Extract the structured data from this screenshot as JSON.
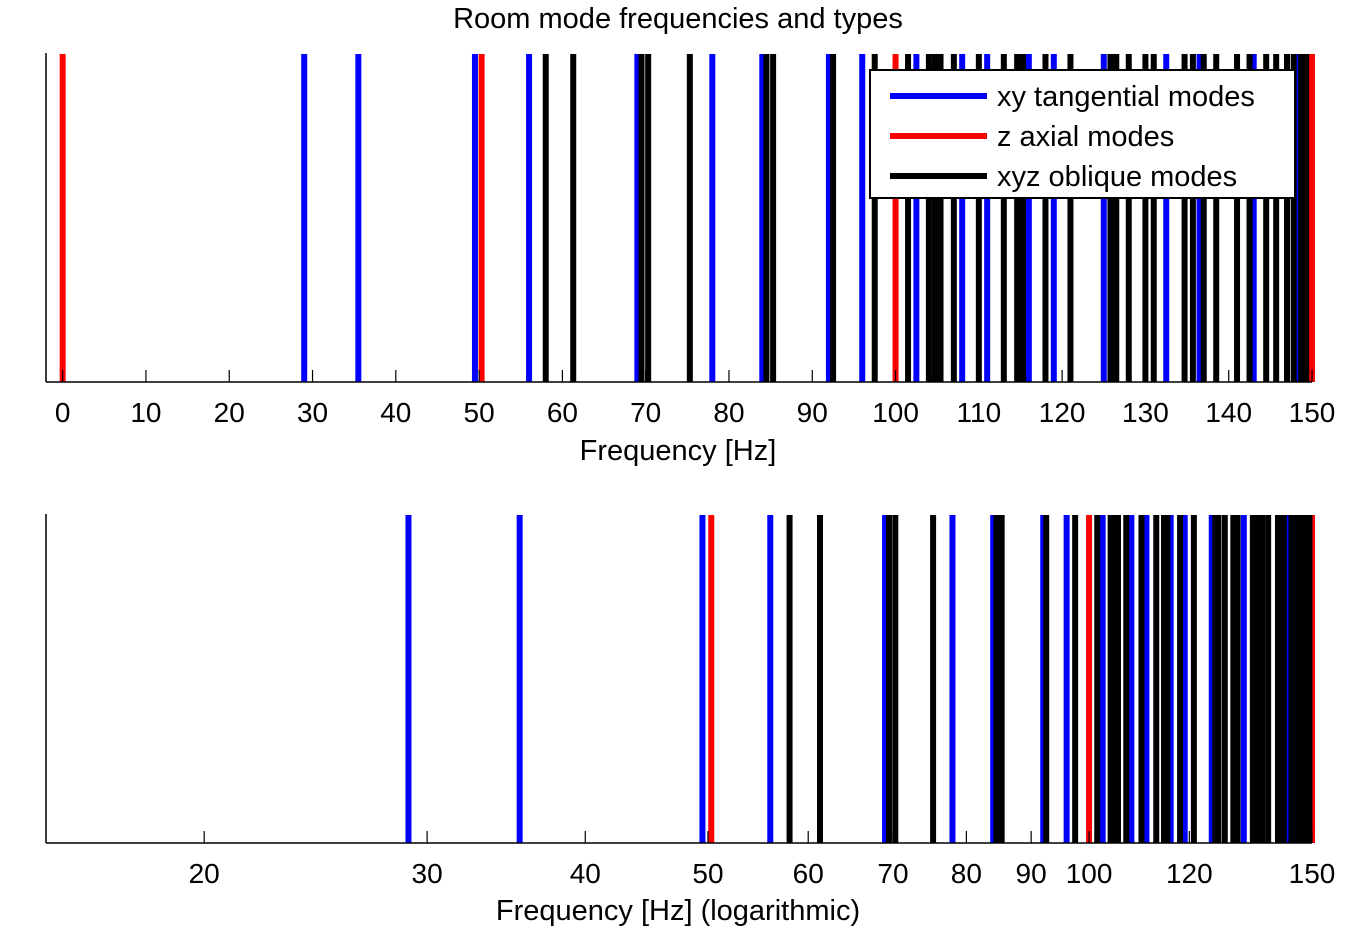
{
  "title": "Room mode frequencies and types",
  "colors": {
    "xy tangential modes": "#0000ff",
    "z axial modes": "#ff0000",
    "xyz oblique modes": "#000000"
  },
  "legend": {
    "placement": "top-right",
    "entries": [
      "xy tangential modes",
      "z axial modes",
      "xyz oblique modes"
    ]
  },
  "chart_data": [
    {
      "type": "bar",
      "style": "vertical mode lines",
      "xlabel": "Frequency [Hz]",
      "ylabel": "",
      "xscale": "linear",
      "xlim": [
        -2,
        150
      ],
      "xticks": [
        0,
        10,
        20,
        30,
        40,
        50,
        60,
        70,
        80,
        90,
        100,
        110,
        120,
        130,
        140,
        150
      ],
      "grid": false,
      "legend": "top-right",
      "series": [
        {
          "name": "xy tangential modes",
          "values": [
            29,
            35.5,
            49.5,
            56,
            69,
            78,
            84,
            92,
            96,
            102.5,
            108,
            111,
            116,
            119,
            125,
            132.5,
            136.5,
            143,
            148.5
          ]
        },
        {
          "name": "z axial modes",
          "values": [
            0,
            50.3,
            100,
            150
          ]
        },
        {
          "name": "xyz oblique modes",
          "values": [
            58,
            61.3,
            69.5,
            70.3,
            75.3,
            84.5,
            85.3,
            92.5,
            97.5,
            101.5,
            104,
            104.7,
            105.4,
            107,
            110,
            113,
            114.6,
            115.3,
            118,
            121,
            125.8,
            126.5,
            128,
            130,
            131,
            134.7,
            135.7,
            137,
            138.5,
            141,
            142.5,
            144.5,
            145.7,
            147,
            147.8,
            148.7,
            149.3
          ]
        }
      ]
    },
    {
      "type": "bar",
      "style": "vertical mode lines",
      "xlabel": "Frequency [Hz] (logarithmic)",
      "ylabel": "",
      "xscale": "log",
      "xlim": [
        15,
        150
      ],
      "xticks": [
        20,
        30,
        40,
        50,
        60,
        70,
        80,
        90,
        100,
        120,
        150
      ],
      "grid": false,
      "series": [
        {
          "name": "xy tangential modes",
          "values": [
            29,
            35.5,
            49.5,
            56,
            69,
            78,
            84,
            92,
            96,
            102.5,
            108,
            111,
            116,
            119,
            125,
            132.5,
            136.5,
            143,
            148.5
          ]
        },
        {
          "name": "z axial modes",
          "values": [
            0,
            50.3,
            100,
            150
          ]
        },
        {
          "name": "xyz oblique modes",
          "values": [
            58,
            61.3,
            69.5,
            70.3,
            75.3,
            84.5,
            85.3,
            92.5,
            97.5,
            101.5,
            104,
            104.7,
            105.4,
            107,
            110,
            113,
            114.6,
            115.3,
            118,
            121,
            125.8,
            126.5,
            128,
            130,
            131,
            134.7,
            135.7,
            137,
            138.5,
            141,
            142.5,
            144.5,
            145.7,
            147,
            147.8,
            148.7,
            149.3
          ]
        }
      ]
    }
  ]
}
